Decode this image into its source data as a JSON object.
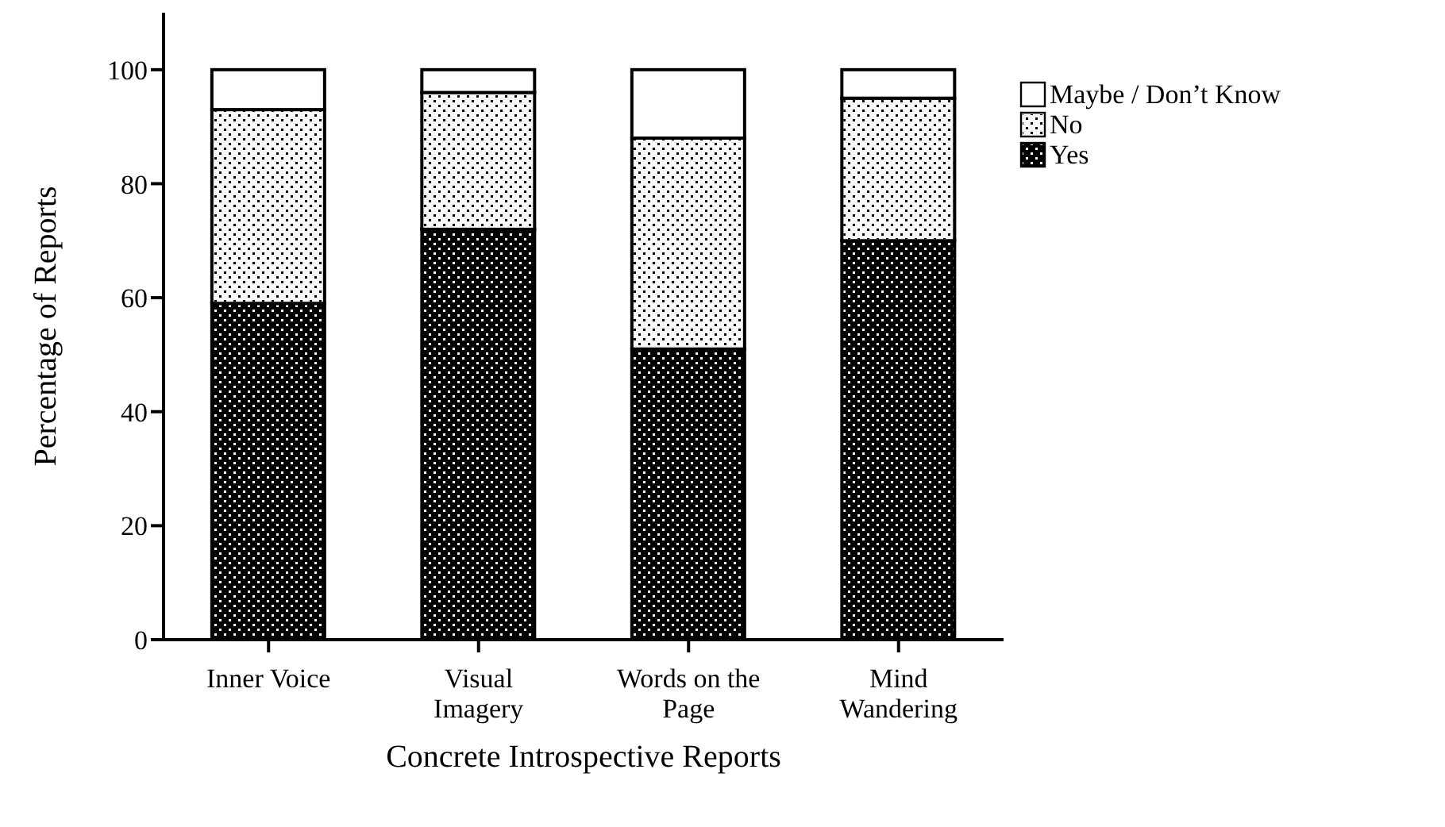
{
  "chart_data": {
    "type": "bar",
    "stacked": true,
    "xlabel": "Concrete Introspective Reports",
    "ylabel": "Percentage of Reports",
    "categories": [
      "Inner Voice",
      "Visual Imagery",
      "Words on the Page",
      "Mind Wandering"
    ],
    "series": [
      {
        "name": "Yes",
        "color": "#000000",
        "values": [
          59,
          72,
          51,
          70
        ]
      },
      {
        "name": "No",
        "color": "#f8f8f8",
        "values": [
          34,
          24,
          37,
          25
        ]
      },
      {
        "name": "Maybe / Don’t Know",
        "color": "#ffffff",
        "values": [
          7,
          4,
          12,
          5
        ]
      }
    ],
    "ylim": [
      0,
      110
    ],
    "yticks": [
      0,
      20,
      40,
      60,
      80,
      100
    ],
    "grid": false,
    "legend": "top right"
  }
}
